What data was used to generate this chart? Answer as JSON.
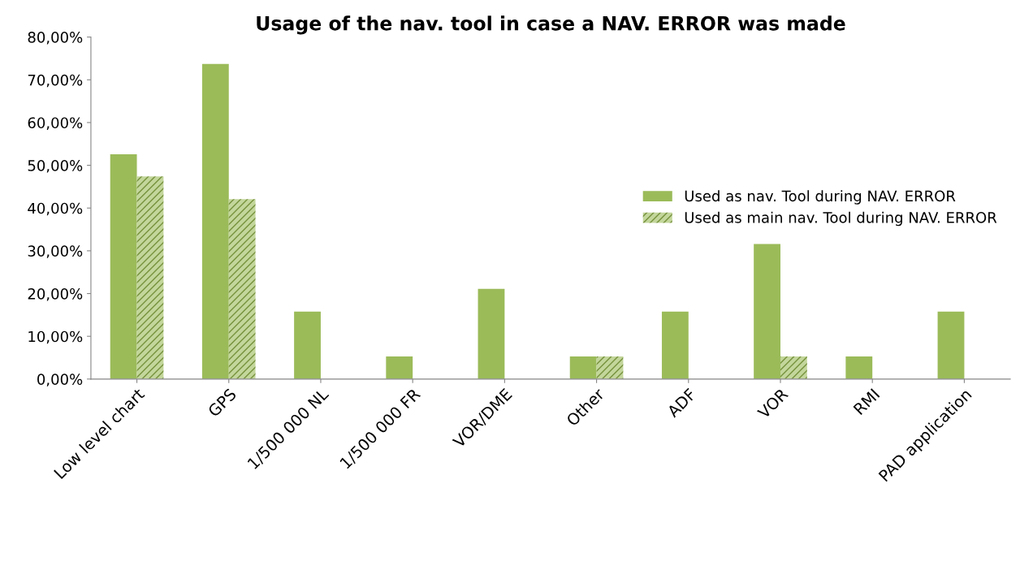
{
  "chart_data": {
    "type": "bar",
    "title": "Usage of the nav. tool in case a NAV. ERROR was made",
    "categories": [
      "Low level chart",
      "GPS",
      "1/500 000 NL",
      "1/500 000 FR",
      "VOR/DME",
      "Other",
      "ADF",
      "VOR",
      "RMI",
      "PAD application"
    ],
    "series": [
      {
        "name": "Used as nav. Tool during NAV. ERROR",
        "color": "#9bbb59",
        "values": [
          52.6,
          73.7,
          15.8,
          5.3,
          21.1,
          5.3,
          15.8,
          31.6,
          5.3,
          15.8
        ]
      },
      {
        "name": "Used as main nav. Tool during NAV. ERROR",
        "color": "#c3d69b",
        "values": [
          47.4,
          42.1,
          0,
          0,
          0,
          5.3,
          0,
          5.3,
          0,
          0
        ]
      }
    ],
    "ylim": [
      0,
      80
    ],
    "yticks": [
      {
        "value": 0,
        "label": "0,00%"
      },
      {
        "value": 10,
        "label": "10,00%"
      },
      {
        "value": 20,
        "label": "20,00%"
      },
      {
        "value": 30,
        "label": "30,00%"
      },
      {
        "value": 40,
        "label": "40,00%"
      },
      {
        "value": 50,
        "label": "50,00%"
      },
      {
        "value": 60,
        "label": "60,00%"
      },
      {
        "value": 70,
        "label": "70,00%"
      },
      {
        "value": 80,
        "label": "80,00%"
      }
    ],
    "grid": false,
    "legend": "right"
  }
}
